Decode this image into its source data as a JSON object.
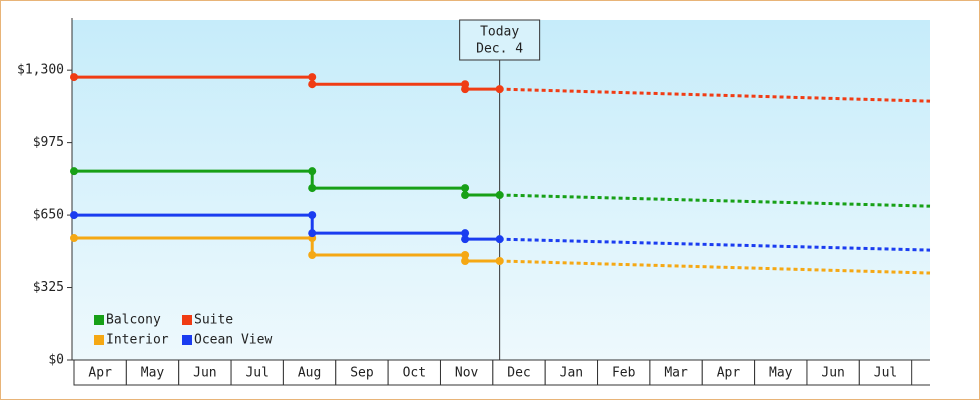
{
  "chart_data": {
    "type": "step-line",
    "ylim": [
      0,
      1525
    ],
    "yticks": [
      {
        "value": 0,
        "label": "$0"
      },
      {
        "value": 325,
        "label": "$325"
      },
      {
        "value": 650,
        "label": "$650"
      },
      {
        "value": 975,
        "label": "$975"
      },
      {
        "value": 1300,
        "label": "$1,300"
      }
    ],
    "xlim": [
      0,
      16.35
    ],
    "xticks": [
      {
        "value": 0.5,
        "label": "Apr"
      },
      {
        "value": 1.5,
        "label": "May"
      },
      {
        "value": 2.5,
        "label": "Jun"
      },
      {
        "value": 3.5,
        "label": "Jul"
      },
      {
        "value": 4.5,
        "label": "Aug"
      },
      {
        "value": 5.5,
        "label": "Sep"
      },
      {
        "value": 6.5,
        "label": "Oct"
      },
      {
        "value": 7.5,
        "label": "Nov"
      },
      {
        "value": 8.5,
        "label": "Dec"
      },
      {
        "value": 9.5,
        "label": "Jan"
      },
      {
        "value": 10.5,
        "label": "Feb"
      },
      {
        "value": 11.5,
        "label": "Mar"
      },
      {
        "value": 12.5,
        "label": "Apr"
      },
      {
        "value": 13.5,
        "label": "May"
      },
      {
        "value": 14.5,
        "label": "Jun"
      },
      {
        "value": 15.5,
        "label": "Jul"
      }
    ],
    "today": {
      "x": 8.13,
      "label": [
        "Today",
        "Dec. 4"
      ]
    },
    "legend": "lower left",
    "series": [
      {
        "name": "Balcony",
        "color": "#17a017",
        "x": [
          0,
          4.55,
          7.47,
          8.13
        ],
        "values": [
          847,
          771,
          740,
          740
        ],
        "forecast": {
          "x": [
            8.13,
            16.35
          ],
          "values": [
            740,
            690
          ]
        }
      },
      {
        "name": "Suite",
        "color": "#f03c14",
        "x": [
          0,
          4.55,
          7.47,
          8.13
        ],
        "values": [
          1269,
          1237,
          1215,
          1215
        ],
        "forecast": {
          "x": [
            8.13,
            16.35
          ],
          "values": [
            1215,
            1161
          ]
        }
      },
      {
        "name": "Interior",
        "color": "#f5a814",
        "x": [
          0,
          4.55,
          7.47,
          8.13
        ],
        "values": [
          547,
          471,
          444,
          444
        ],
        "forecast": {
          "x": [
            8.13,
            16.35
          ],
          "values": [
            444,
            390
          ]
        }
      },
      {
        "name": "Ocean View",
        "color": "#1a3cf0",
        "x": [
          0,
          4.55,
          7.47,
          8.13
        ],
        "values": [
          650,
          569,
          542,
          542
        ],
        "forecast": {
          "x": [
            8.13,
            16.35
          ],
          "values": [
            542,
            493
          ]
        }
      }
    ]
  }
}
